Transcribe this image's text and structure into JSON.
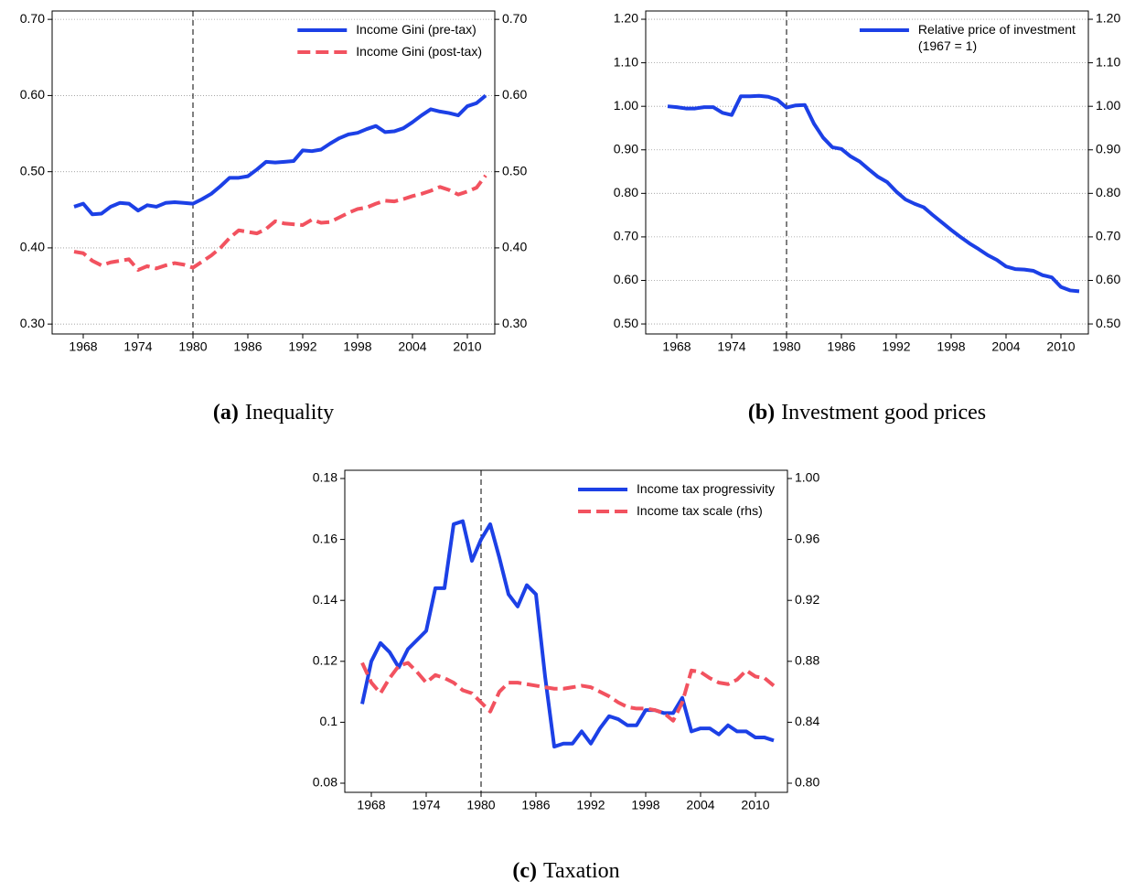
{
  "chart_data": [
    {
      "type": "line",
      "label": "(a)",
      "caption": "Inequality",
      "vline": 1980,
      "mirror_y": true,
      "grid": true,
      "legend": "upper right",
      "x": [
        1967,
        1968,
        1969,
        1970,
        1971,
        1972,
        1973,
        1974,
        1975,
        1976,
        1977,
        1978,
        1979,
        1980,
        1981,
        1982,
        1983,
        1984,
        1985,
        1986,
        1987,
        1988,
        1989,
        1990,
        1991,
        1992,
        1993,
        1994,
        1995,
        1996,
        1997,
        1998,
        1999,
        2000,
        2001,
        2002,
        2003,
        2004,
        2005,
        2006,
        2007,
        2008,
        2009,
        2010,
        2011,
        2012
      ],
      "xlim": [
        1964.6,
        2013
      ],
      "xticks": [
        1968,
        1974,
        1980,
        1986,
        1992,
        1998,
        2004,
        2010
      ],
      "ylim": [
        0.287,
        0.711
      ],
      "yticks": [
        {
          "value": 0.3,
          "label": "0.30"
        },
        {
          "value": 0.4,
          "label": "0.40"
        },
        {
          "value": 0.5,
          "label": "0.50"
        },
        {
          "value": 0.6,
          "label": "0.60"
        },
        {
          "value": 0.7,
          "label": "0.70"
        }
      ],
      "series": [
        {
          "name": "Income Gini (pre-tax)",
          "color": "#1c40e6",
          "style": "solid",
          "values": [
            0.454,
            0.458,
            0.444,
            0.445,
            0.454,
            0.459,
            0.458,
            0.449,
            0.456,
            0.454,
            0.459,
            0.46,
            0.459,
            0.458,
            0.464,
            0.471,
            0.481,
            0.492,
            0.492,
            0.494,
            0.503,
            0.513,
            0.512,
            0.513,
            0.514,
            0.528,
            0.527,
            0.529,
            0.537,
            0.544,
            0.549,
            0.551,
            0.556,
            0.56,
            0.552,
            0.553,
            0.557,
            0.565,
            0.574,
            0.582,
            0.579,
            0.577,
            0.574,
            0.586,
            0.59,
            0.6
          ]
        },
        {
          "name": "Income Gini (post-tax)",
          "color": "#f2525f",
          "style": "dashed",
          "values": [
            0.395,
            0.393,
            0.383,
            0.377,
            0.381,
            0.383,
            0.385,
            0.371,
            0.376,
            0.373,
            0.377,
            0.38,
            0.378,
            0.374,
            0.382,
            0.39,
            0.4,
            0.413,
            0.423,
            0.421,
            0.419,
            0.425,
            0.435,
            0.432,
            0.431,
            0.43,
            0.437,
            0.433,
            0.434,
            0.44,
            0.446,
            0.451,
            0.453,
            0.458,
            0.462,
            0.461,
            0.464,
            0.468,
            0.471,
            0.475,
            0.48,
            0.476,
            0.47,
            0.474,
            0.479,
            0.495
          ]
        }
      ]
    },
    {
      "type": "line",
      "label": "(b)",
      "caption": "Investment good prices",
      "vline": 1980,
      "mirror_y": true,
      "grid": true,
      "legend": "upper right",
      "x": [
        1967,
        1968,
        1969,
        1970,
        1971,
        1972,
        1973,
        1974,
        1975,
        1976,
        1977,
        1978,
        1979,
        1980,
        1981,
        1982,
        1983,
        1984,
        1985,
        1986,
        1987,
        1988,
        1989,
        1990,
        1991,
        1992,
        1993,
        1994,
        1995,
        1996,
        1997,
        1998,
        1999,
        2000,
        2001,
        2002,
        2003,
        2004,
        2005,
        2006,
        2007,
        2008,
        2009,
        2010,
        2011,
        2012
      ],
      "xlim": [
        1964.6,
        2013
      ],
      "xticks": [
        1968,
        1974,
        1980,
        1986,
        1992,
        1998,
        2004,
        2010
      ],
      "ylim": [
        0.477,
        1.219
      ],
      "yticks": [
        {
          "value": 0.5,
          "label": "0.50"
        },
        {
          "value": 0.6,
          "label": "0.60"
        },
        {
          "value": 0.7,
          "label": "0.70"
        },
        {
          "value": 0.8,
          "label": "0.80"
        },
        {
          "value": 0.9,
          "label": "0.90"
        },
        {
          "value": 1.0,
          "label": "1.00"
        },
        {
          "value": 1.1,
          "label": "1.10"
        },
        {
          "value": 1.2,
          "label": "1.20"
        }
      ],
      "series": [
        {
          "name": "Relative price of investment\n(1967 = 1)",
          "color": "#1c40e6",
          "style": "solid",
          "values": [
            1.0,
            0.998,
            0.995,
            0.995,
            0.998,
            0.998,
            0.985,
            0.98,
            1.023,
            1.023,
            1.024,
            1.022,
            1.015,
            0.997,
            1.002,
            1.003,
            0.96,
            0.928,
            0.906,
            0.902,
            0.885,
            0.873,
            0.855,
            0.838,
            0.826,
            0.804,
            0.786,
            0.776,
            0.768,
            0.75,
            0.733,
            0.716,
            0.7,
            0.685,
            0.672,
            0.658,
            0.647,
            0.632,
            0.626,
            0.625,
            0.622,
            0.612,
            0.607,
            0.585,
            0.577,
            0.575
          ]
        }
      ]
    },
    {
      "type": "line",
      "label": "(c)",
      "caption": "Taxation",
      "vline": 1980,
      "mirror_y": false,
      "grid": false,
      "legend": "upper right",
      "x": [
        1967,
        1968,
        1969,
        1970,
        1971,
        1972,
        1973,
        1974,
        1975,
        1976,
        1977,
        1978,
        1979,
        1980,
        1981,
        1982,
        1983,
        1984,
        1985,
        1986,
        1987,
        1988,
        1989,
        1990,
        1991,
        1992,
        1993,
        1994,
        1995,
        1996,
        1997,
        1998,
        1999,
        2000,
        2001,
        2002,
        2003,
        2004,
        2005,
        2006,
        2007,
        2008,
        2009,
        2010,
        2011,
        2012
      ],
      "xlim": [
        1965.1,
        2013.5
      ],
      "xticks": [
        1968,
        1974,
        1980,
        1986,
        1992,
        1998,
        2004,
        2010
      ],
      "ylim": [
        0.077,
        0.1827
      ],
      "yticks": [
        0.08,
        0.1,
        0.12,
        0.14,
        0.16,
        0.18
      ],
      "y2lim": [
        0.794,
        1.0054
      ],
      "y2ticks": [
        {
          "value": 0.8,
          "label": "0.80"
        },
        0.84,
        0.88,
        0.92,
        0.96,
        {
          "value": 1.0,
          "label": "1.00"
        }
      ],
      "series": [
        {
          "name": "Income tax progressivity",
          "color": "#1c40e6",
          "style": "solid",
          "values": [
            0.106,
            0.12,
            0.126,
            0.123,
            0.118,
            0.124,
            0.127,
            0.13,
            0.144,
            0.144,
            0.165,
            0.166,
            0.153,
            0.16,
            0.165,
            0.154,
            0.142,
            0.138,
            0.145,
            0.142,
            0.115,
            0.092,
            0.093,
            0.093,
            0.097,
            0.093,
            0.098,
            0.102,
            0.101,
            0.099,
            0.099,
            0.104,
            0.104,
            0.103,
            0.103,
            0.108,
            0.097,
            0.098,
            0.098,
            0.096,
            0.099,
            0.097,
            0.097,
            0.095,
            0.095,
            0.094
          ]
        },
        {
          "name": "Income tax scale (rhs)",
          "color": "#f2525f",
          "style": "dashed",
          "axis": "y2",
          "values": [
            0.879,
            0.866,
            0.859,
            0.869,
            0.877,
            0.879,
            0.873,
            0.866,
            0.871,
            0.869,
            0.866,
            0.861,
            0.859,
            0.853,
            0.847,
            0.86,
            0.866,
            0.866,
            0.865,
            0.864,
            0.863,
            0.862,
            0.862,
            0.863,
            0.864,
            0.863,
            0.86,
            0.857,
            0.853,
            0.85,
            0.849,
            0.849,
            0.848,
            0.846,
            0.841,
            0.853,
            0.874,
            0.873,
            0.869,
            0.866,
            0.865,
            0.868,
            0.874,
            0.87,
            0.869,
            0.864
          ]
        }
      ]
    }
  ]
}
